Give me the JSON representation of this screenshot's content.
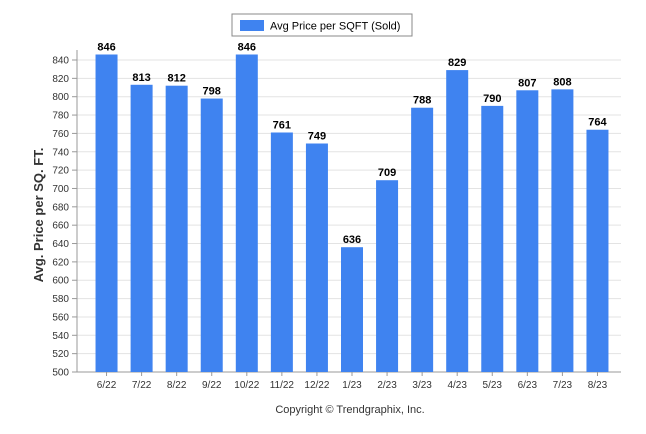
{
  "chart_data": {
    "type": "bar",
    "categories": [
      "6/22",
      "7/22",
      "8/22",
      "9/22",
      "10/22",
      "11/22",
      "12/22",
      "1/23",
      "2/23",
      "3/23",
      "4/23",
      "5/23",
      "6/23",
      "7/23",
      "8/23"
    ],
    "series": [
      {
        "name": "Avg Price per SQFT (Sold)",
        "values": [
          846,
          813,
          812,
          798,
          846,
          761,
          749,
          636,
          709,
          788,
          829,
          790,
          807,
          808,
          764
        ],
        "color": "#3f83f0"
      }
    ],
    "ylabel": "Avg. Price per SQ. FT.",
    "xlabel": "",
    "ylim": [
      500,
      850
    ],
    "yticks": [
      500,
      520,
      540,
      560,
      580,
      600,
      620,
      640,
      660,
      680,
      700,
      720,
      740,
      760,
      780,
      800,
      820,
      840
    ],
    "grid": true,
    "legend_position": "top-center",
    "footer": "Copyright © Trendgraphix, Inc."
  }
}
